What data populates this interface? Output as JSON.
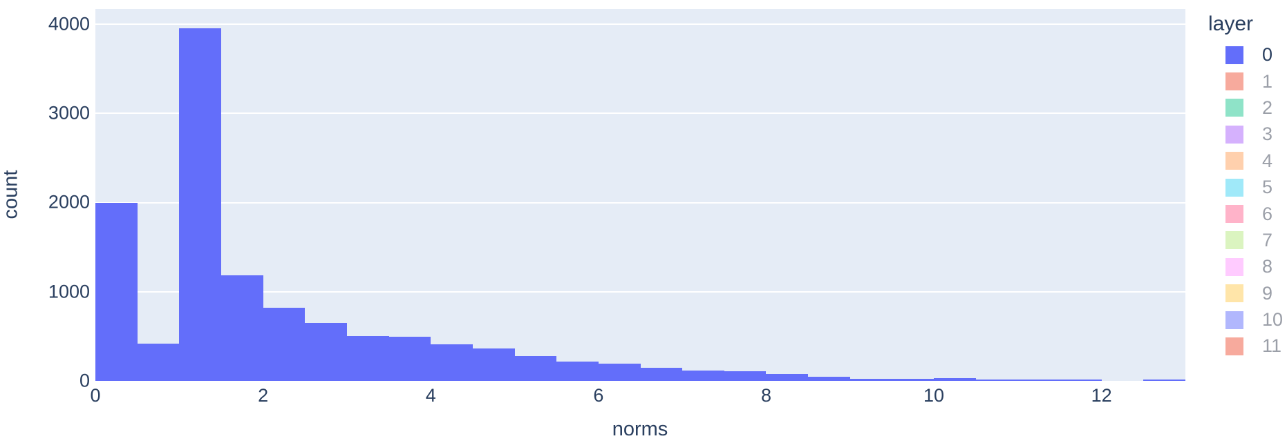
{
  "chart_data": {
    "type": "bar",
    "subtype": "histogram",
    "title": "",
    "xlabel": "norms",
    "ylabel": "count",
    "x_range": [
      0,
      13
    ],
    "y_range": [
      0,
      4170
    ],
    "x_tick_values": [
      0,
      2,
      4,
      6,
      8,
      10,
      12
    ],
    "x_tick_labels": [
      "0",
      "2",
      "4",
      "6",
      "8",
      "10",
      "12"
    ],
    "y_tick_values": [
      0,
      1000,
      2000,
      3000,
      4000
    ],
    "y_tick_labels": [
      "0",
      "1000",
      "2000",
      "3000",
      "4000"
    ],
    "bin_start": 0,
    "bin_width": 0.5,
    "series": [
      {
        "name": "0",
        "color": "#636efa",
        "counts": [
          2000,
          420,
          3950,
          1180,
          820,
          650,
          505,
          495,
          410,
          360,
          280,
          220,
          195,
          150,
          115,
          105,
          78,
          45,
          20,
          22,
          30,
          12,
          12,
          18,
          0,
          18
        ]
      }
    ],
    "grid": "horizontal-only",
    "legend_position": "right"
  },
  "legend": {
    "title": "layer",
    "items": [
      {
        "label": "0",
        "swatch_color": "#636efa",
        "text_color": "#2a3f5f",
        "active": true
      },
      {
        "label": "1",
        "swatch_color": "#f7aa9d",
        "text_color": "#9b9fa8",
        "active": false
      },
      {
        "label": "2",
        "swatch_color": "#8fe3c8",
        "text_color": "#9b9fa8",
        "active": false
      },
      {
        "label": "3",
        "swatch_color": "#d5b1fd",
        "text_color": "#9b9fa8",
        "active": false
      },
      {
        "label": "4",
        "swatch_color": "#ffd0ad",
        "text_color": "#9b9fa8",
        "active": false
      },
      {
        "label": "5",
        "swatch_color": "#a0e9f9",
        "text_color": "#9b9fa8",
        "active": false
      },
      {
        "label": "6",
        "swatch_color": "#ffb3c9",
        "text_color": "#9b9fa8",
        "active": false
      },
      {
        "label": "7",
        "swatch_color": "#dbf4c0",
        "text_color": "#9b9fa8",
        "active": false
      },
      {
        "label": "8",
        "swatch_color": "#ffcbff",
        "text_color": "#9b9fa8",
        "active": false
      },
      {
        "label": "9",
        "swatch_color": "#ffe5a9",
        "text_color": "#9b9fa8",
        "active": false
      },
      {
        "label": "10",
        "swatch_color": "#b1b7fd",
        "text_color": "#9b9fa8",
        "active": false
      },
      {
        "label": "11",
        "swatch_color": "#f7aa9d",
        "text_color": "#9b9fa8",
        "active": false
      }
    ]
  },
  "colors": {
    "bar": "#636efa",
    "plot_background": "#e5ecf6",
    "gridline": "#ffffff",
    "axis_text": "#2a3f5f",
    "page_background": "#ffffff"
  }
}
